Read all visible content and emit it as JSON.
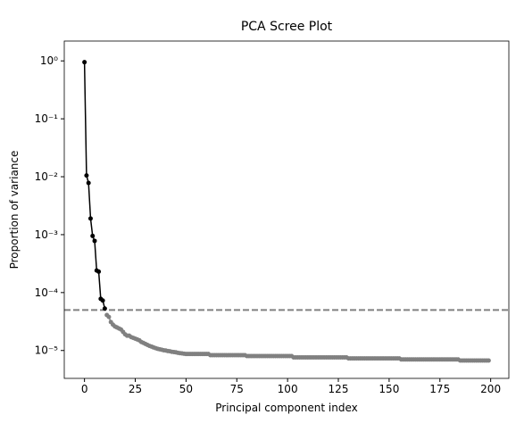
{
  "chart_data": {
    "type": "line",
    "title": "PCA Scree Plot",
    "xlabel": "Principal component index",
    "ylabel": "Proportion of variance",
    "yscale": "log",
    "xlim": [
      -9.95,
      208.95
    ],
    "ylim": [
      3.3e-06,
      2.2
    ],
    "xticks": [
      0,
      25,
      50,
      75,
      100,
      125,
      150,
      175,
      200
    ],
    "yticks": [
      {
        "value": 1,
        "label": "10⁰"
      },
      {
        "value": 0.1,
        "label": "10⁻¹"
      },
      {
        "value": 0.01,
        "label": "10⁻²"
      },
      {
        "value": 0.001,
        "label": "10⁻³"
      },
      {
        "value": 0.0001,
        "label": "10⁻⁴"
      },
      {
        "value": 1e-05,
        "label": "10⁻⁵"
      }
    ],
    "hline": {
      "value": 5e-05,
      "color": "#808080",
      "style": "dashed"
    },
    "series": [
      {
        "color": "#000000",
        "x": [
          0,
          1,
          2,
          3,
          4,
          5,
          6,
          7,
          8,
          9,
          10
        ],
        "values": [
          0.95,
          0.0105,
          0.0078,
          0.0019,
          0.00095,
          0.00078,
          0.00024,
          0.00023,
          7.8e-05,
          7.3e-05,
          5.3e-05
        ]
      },
      {
        "color": "#808080",
        "x": [
          11,
          12,
          13,
          14,
          15,
          16,
          17,
          18,
          19,
          20,
          21,
          22,
          23,
          24,
          25,
          26,
          27,
          28,
          29,
          30,
          31,
          32,
          33,
          34,
          35,
          36,
          37,
          38,
          39,
          40,
          41,
          42,
          43,
          44,
          45,
          46,
          47,
          48,
          49,
          50,
          51,
          52,
          53,
          54,
          55,
          56,
          57,
          58,
          59,
          60,
          61,
          62,
          63,
          64,
          65,
          66,
          67,
          68,
          69,
          70,
          71,
          72,
          73,
          74,
          75,
          76,
          77,
          78,
          79,
          80,
          81,
          82,
          83,
          84,
          85,
          86,
          87,
          88,
          89,
          90,
          91,
          92,
          93,
          94,
          95,
          96,
          97,
          98,
          99,
          100,
          101,
          102,
          103,
          104,
          105,
          106,
          107,
          108,
          109,
          110,
          111,
          112,
          113,
          114,
          115,
          116,
          117,
          118,
          119,
          120,
          121,
          122,
          123,
          124,
          125,
          126,
          127,
          128,
          129,
          130,
          131,
          132,
          133,
          134,
          135,
          136,
          137,
          138,
          139,
          140,
          141,
          142,
          143,
          144,
          145,
          146,
          147,
          148,
          149,
          150,
          151,
          152,
          153,
          154,
          155,
          156,
          157,
          158,
          159,
          160,
          161,
          162,
          163,
          164,
          165,
          166,
          167,
          168,
          169,
          170,
          171,
          172,
          173,
          174,
          175,
          176,
          177,
          178,
          179,
          180,
          181,
          182,
          183,
          184,
          185,
          186,
          187,
          188,
          189,
          190,
          191,
          192,
          193,
          194,
          195,
          196,
          197,
          198,
          199
        ],
        "values": [
          4.1e-05,
          3.8e-05,
          3.1e-05,
          2.8e-05,
          2.6e-05,
          2.5e-05,
          2.4e-05,
          2.3e-05,
          2.1e-05,
          1.9e-05,
          1.8e-05,
          1.8e-05,
          1.7e-05,
          1.65e-05,
          1.6e-05,
          1.55e-05,
          1.5e-05,
          1.4e-05,
          1.35e-05,
          1.3e-05,
          1.25e-05,
          1.2e-05,
          1.17e-05,
          1.13e-05,
          1.1e-05,
          1.07e-05,
          1.05e-05,
          1.03e-05,
          1.01e-05,
          1e-05,
          9.8e-06,
          9.7e-06,
          9.5e-06,
          9.4e-06,
          9.3e-06,
          9.1e-06,
          9e-06,
          8.9e-06,
          8.8e-06,
          8.7e-06,
          8.7e-06,
          8.7e-06,
          8.7e-06,
          8.7e-06,
          8.7e-06,
          8.7e-06,
          8.7e-06,
          8.7e-06,
          8.7e-06,
          8.7e-06,
          8.7e-06,
          8.3e-06,
          8.3e-06,
          8.3e-06,
          8.3e-06,
          8.3e-06,
          8.3e-06,
          8.3e-06,
          8.3e-06,
          8.3e-06,
          8.3e-06,
          8.3e-06,
          8.3e-06,
          8.3e-06,
          8.3e-06,
          8.3e-06,
          8.3e-06,
          8.3e-06,
          8.3e-06,
          8e-06,
          8e-06,
          8e-06,
          8e-06,
          8e-06,
          8e-06,
          8e-06,
          8e-06,
          8e-06,
          8e-06,
          8e-06,
          8e-06,
          8e-06,
          8e-06,
          8e-06,
          8e-06,
          8e-06,
          8e-06,
          8e-06,
          8e-06,
          8e-06,
          8e-06,
          8e-06,
          7.6e-06,
          7.6e-06,
          7.6e-06,
          7.6e-06,
          7.6e-06,
          7.6e-06,
          7.6e-06,
          7.6e-06,
          7.6e-06,
          7.6e-06,
          7.6e-06,
          7.6e-06,
          7.6e-06,
          7.6e-06,
          7.6e-06,
          7.6e-06,
          7.6e-06,
          7.6e-06,
          7.6e-06,
          7.6e-06,
          7.6e-06,
          7.6e-06,
          7.6e-06,
          7.6e-06,
          7.6e-06,
          7.6e-06,
          7.6e-06,
          7.3e-06,
          7.3e-06,
          7.3e-06,
          7.3e-06,
          7.3e-06,
          7.3e-06,
          7.3e-06,
          7.3e-06,
          7.3e-06,
          7.3e-06,
          7.3e-06,
          7.3e-06,
          7.3e-06,
          7.3e-06,
          7.3e-06,
          7.3e-06,
          7.3e-06,
          7.3e-06,
          7.3e-06,
          7.3e-06,
          7.3e-06,
          7.3e-06,
          7.3e-06,
          7.3e-06,
          7.3e-06,
          7.3e-06,
          7e-06,
          7e-06,
          7e-06,
          7e-06,
          7e-06,
          7e-06,
          7e-06,
          7e-06,
          7e-06,
          7e-06,
          7e-06,
          7e-06,
          7e-06,
          7e-06,
          7e-06,
          7e-06,
          7e-06,
          7e-06,
          7e-06,
          7e-06,
          7e-06,
          7e-06,
          7e-06,
          7e-06,
          7e-06,
          7e-06,
          7e-06,
          7e-06,
          7e-06,
          6.7e-06,
          6.7e-06,
          6.7e-06,
          6.7e-06,
          6.7e-06,
          6.7e-06,
          6.7e-06,
          6.7e-06,
          6.7e-06,
          6.7e-06,
          6.7e-06,
          6.7e-06,
          6.7e-06,
          6.7e-06,
          6.7e-06
        ]
      }
    ]
  }
}
